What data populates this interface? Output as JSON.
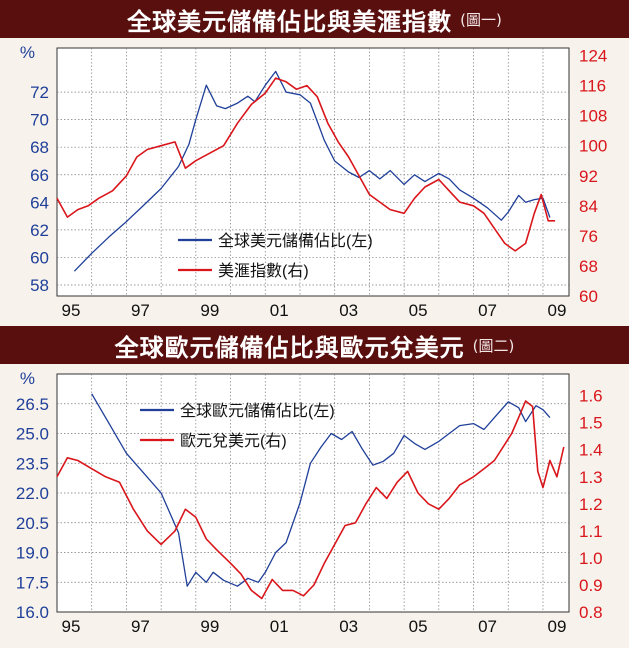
{
  "colors": {
    "banner_bg": "#5a0f0f",
    "left_axis": "#1f3f99",
    "right_axis": "#d9161b",
    "grid": "#7a7a7a",
    "plot_bg": "#ffffff"
  },
  "chart_data": [
    {
      "type": "line",
      "title": "全球美元儲備佔比與美滙指數",
      "title_note": "(圖一)",
      "left_unit": "%",
      "x_tick_labels": [
        "95",
        "97",
        "99",
        "01",
        "03",
        "05",
        "07",
        "09"
      ],
      "x_range": [
        1995,
        2009.75
      ],
      "left_axis": {
        "ticks": [
          58,
          60,
          62,
          64,
          66,
          68,
          70,
          72
        ],
        "range": [
          57.2,
          75.2
        ]
      },
      "right_axis": {
        "ticks": [
          60,
          68,
          76,
          84,
          92,
          100,
          108,
          116,
          124
        ],
        "range": [
          60,
          126
        ]
      },
      "legend_position": "center",
      "grid": true,
      "series": [
        {
          "name": "全球美元儲備佔比(左)",
          "axis": "left",
          "color": "#1f3f99",
          "x": [
            1995.5,
            1996.0,
            1996.5,
            1997.0,
            1997.5,
            1998.0,
            1998.5,
            1998.8,
            1999.0,
            1999.3,
            1999.6,
            1999.85,
            2000.2,
            2000.5,
            2000.7,
            2001.0,
            2001.3,
            2001.6,
            2002.0,
            2002.3,
            2002.7,
            2003.0,
            2003.4,
            2003.7,
            2004.0,
            2004.3,
            2004.6,
            2005.0,
            2005.3,
            2005.6,
            2006.0,
            2006.3,
            2006.6,
            2007.0,
            2007.4,
            2007.8,
            2008.0,
            2008.3,
            2008.5,
            2008.75,
            2009.0,
            2009.2
          ],
          "y": [
            59.0,
            60.3,
            61.5,
            62.6,
            63.8,
            65.0,
            66.6,
            68.2,
            70.0,
            72.5,
            71.0,
            70.8,
            71.2,
            71.7,
            71.3,
            72.5,
            73.5,
            72.0,
            71.8,
            71.2,
            68.5,
            67.0,
            66.2,
            65.8,
            66.3,
            65.7,
            66.3,
            65.3,
            66.0,
            65.5,
            66.1,
            65.7,
            64.9,
            64.3,
            63.6,
            62.7,
            63.3,
            64.5,
            64.0,
            64.2,
            64.3,
            62.9
          ]
        },
        {
          "name": "美滙指數(右)",
          "axis": "right",
          "color": "#d9161b",
          "x": [
            1995.0,
            1995.3,
            1995.6,
            1995.9,
            1996.2,
            1996.6,
            1997.0,
            1997.3,
            1997.6,
            1998.0,
            1998.4,
            1998.7,
            1999.0,
            1999.4,
            1999.8,
            2000.2,
            2000.6,
            2001.0,
            2001.3,
            2001.6,
            2001.9,
            2002.2,
            2002.5,
            2002.8,
            2003.1,
            2003.4,
            2003.7,
            2004.0,
            2004.3,
            2004.6,
            2005.0,
            2005.3,
            2005.6,
            2006.0,
            2006.3,
            2006.6,
            2007.0,
            2007.3,
            2007.6,
            2007.9,
            2008.2,
            2008.5,
            2008.75,
            2008.95,
            2009.15,
            2009.35
          ],
          "y": [
            86,
            81,
            83,
            84,
            86,
            88,
            92,
            97,
            99,
            100,
            101,
            94,
            96,
            98,
            100,
            106,
            111,
            114,
            118,
            117,
            115,
            116,
            113,
            106,
            101,
            97,
            92,
            87,
            85,
            83,
            82,
            86,
            89,
            91,
            88,
            85,
            84,
            82,
            78,
            74,
            72,
            74,
            82,
            87,
            80,
            80
          ]
        }
      ]
    },
    {
      "type": "line",
      "title": "全球歐元儲備佔比與歐元兌美元",
      "title_note": "(圖二)",
      "left_unit": "%",
      "x_tick_labels": [
        "95",
        "97",
        "99",
        "01",
        "03",
        "05",
        "07",
        "09"
      ],
      "x_range": [
        1995,
        2009.75
      ],
      "left_axis": {
        "ticks": [
          "16.0",
          "17.5",
          "19.0",
          "20.5",
          "22.0",
          "23.5",
          "25.0",
          "26.5"
        ],
        "range": [
          16.0,
          28.0
        ]
      },
      "right_axis": {
        "ticks": [
          "0.8",
          "0.9",
          "1.0",
          "1.1",
          "1.2",
          "1.3",
          "1.4",
          "1.5",
          "1.6"
        ],
        "range": [
          0.8,
          1.68
        ]
      },
      "legend_position": "top-center",
      "grid": true,
      "series": [
        {
          "name": "全球歐元儲備佔比(左)",
          "axis": "left",
          "color": "#1f3f99",
          "x": [
            1996.0,
            1996.5,
            1997.0,
            1997.5,
            1998.0,
            1998.5,
            1998.75,
            1999.0,
            1999.3,
            1999.5,
            1999.8,
            2000.2,
            2000.5,
            2000.8,
            2001.0,
            2001.3,
            2001.6,
            2002.0,
            2002.3,
            2002.6,
            2002.9,
            2003.2,
            2003.5,
            2003.8,
            2004.1,
            2004.4,
            2004.7,
            2005.0,
            2005.3,
            2005.6,
            2006.0,
            2006.3,
            2006.6,
            2007.0,
            2007.3,
            2007.6,
            2008.0,
            2008.3,
            2008.5,
            2008.8,
            2009.0,
            2009.2
          ],
          "y": [
            27.0,
            25.5,
            24.0,
            23.0,
            22.0,
            20.0,
            17.3,
            18.0,
            17.5,
            18.0,
            17.6,
            17.3,
            17.7,
            17.5,
            18.0,
            19.0,
            19.5,
            21.5,
            23.5,
            24.3,
            25.0,
            24.7,
            25.1,
            24.2,
            23.4,
            23.6,
            24.0,
            24.9,
            24.5,
            24.2,
            24.6,
            25.0,
            25.4,
            25.5,
            25.2,
            25.8,
            26.6,
            26.3,
            25.6,
            26.4,
            26.2,
            25.8
          ]
        },
        {
          "name": "歐元兌美元(右)",
          "axis": "right",
          "color": "#d9161b",
          "x": [
            1995.0,
            1995.3,
            1995.6,
            1996.0,
            1996.4,
            1996.8,
            1997.2,
            1997.6,
            1998.0,
            1998.4,
            1998.7,
            1999.0,
            1999.3,
            1999.6,
            2000.0,
            2000.3,
            2000.6,
            2000.9,
            2001.2,
            2001.5,
            2001.8,
            2002.1,
            2002.4,
            2002.7,
            2003.0,
            2003.3,
            2003.6,
            2003.9,
            2004.2,
            2004.5,
            2004.8,
            2005.1,
            2005.4,
            2005.7,
            2006.0,
            2006.3,
            2006.6,
            2007.0,
            2007.3,
            2007.6,
            2007.9,
            2008.1,
            2008.3,
            2008.5,
            2008.7,
            2008.85,
            2009.0,
            2009.2,
            2009.4,
            2009.6
          ],
          "y": [
            1.3,
            1.37,
            1.36,
            1.33,
            1.3,
            1.28,
            1.18,
            1.1,
            1.05,
            1.1,
            1.18,
            1.15,
            1.07,
            1.03,
            0.98,
            0.94,
            0.88,
            0.85,
            0.92,
            0.88,
            0.88,
            0.86,
            0.9,
            0.98,
            1.05,
            1.12,
            1.13,
            1.2,
            1.26,
            1.22,
            1.28,
            1.32,
            1.24,
            1.2,
            1.18,
            1.22,
            1.27,
            1.3,
            1.33,
            1.36,
            1.42,
            1.46,
            1.52,
            1.58,
            1.56,
            1.32,
            1.26,
            1.36,
            1.3,
            1.41
          ]
        }
      ]
    }
  ]
}
